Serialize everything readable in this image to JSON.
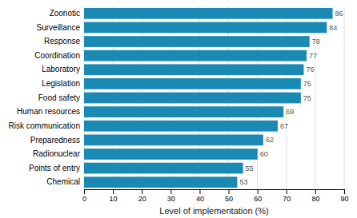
{
  "chart_data": {
    "type": "bar",
    "orientation": "horizontal",
    "categories": [
      "Zoonotic",
      "Surveillance",
      "Response",
      "Coordination",
      "Laboratory",
      "Legislation",
      "Food safety",
      "Human resources",
      "Risk communication",
      "Preparedness",
      "Radionuclear",
      "Points of entry",
      "Chemical"
    ],
    "values": [
      86,
      84,
      78,
      77,
      76,
      75,
      75,
      69,
      67,
      62,
      60,
      55,
      53
    ],
    "color": "#1a8ab5",
    "xlabel": "Level of implementation (%)",
    "xlim": [
      0,
      90
    ],
    "xticks": [
      0,
      10,
      20,
      30,
      40,
      50,
      60,
      70,
      80,
      90
    ],
    "grid": true,
    "data_labels": true
  }
}
